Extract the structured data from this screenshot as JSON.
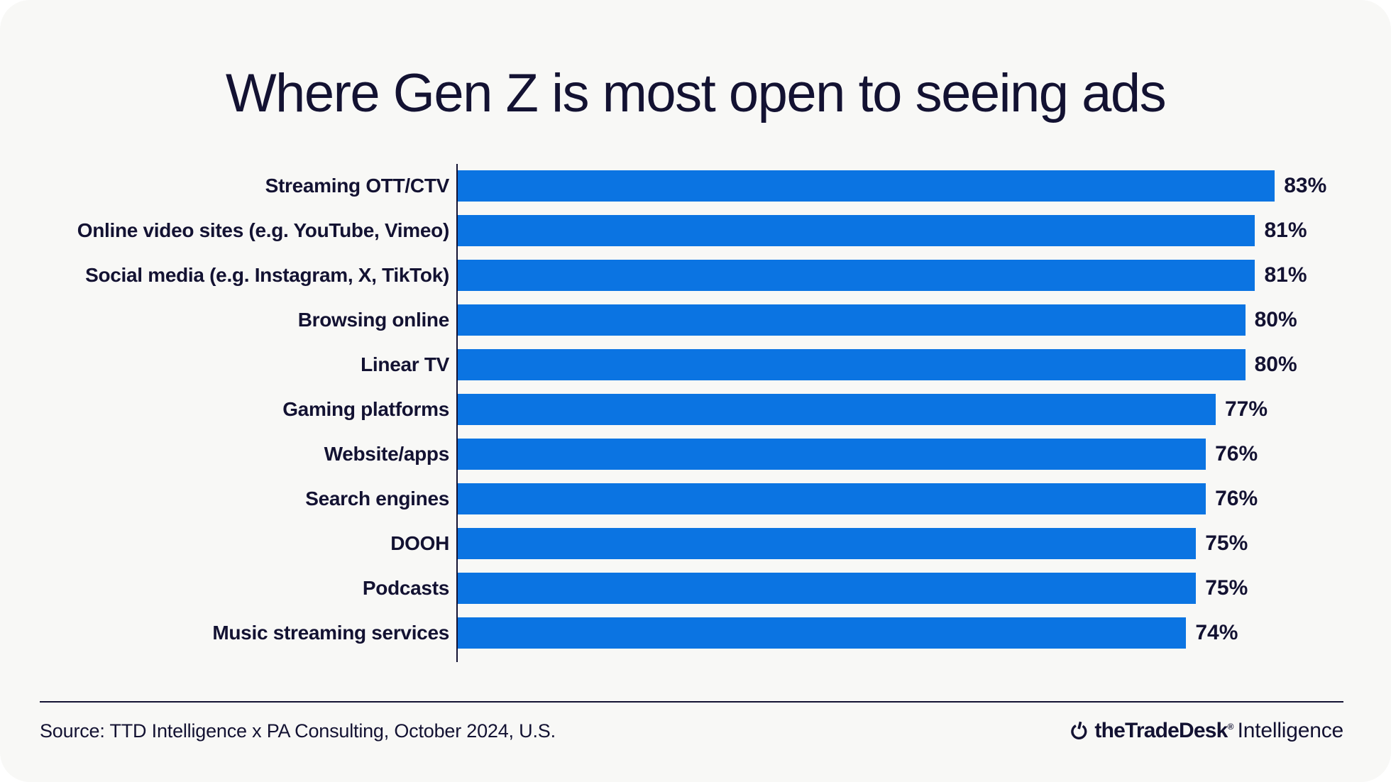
{
  "title": "Where Gen Z is most open to seeing ads",
  "footer": {
    "source": "Source: TTD Intelligence x PA Consulting, October 2024, U.S.",
    "logo": {
      "icon": "trade-desk-power-icon",
      "brand": "theTradeDesk",
      "registered_mark": "®",
      "suffix": "Intelligence"
    }
  },
  "colors": {
    "bar": "#0b74e2",
    "text": "#131232",
    "card_background": "#f8f8f6"
  },
  "chart_data": {
    "type": "bar",
    "orientation": "horizontal",
    "title": "Where Gen Z is most open to seeing ads",
    "categories": [
      "Streaming OTT/CTV",
      "Online video sites (e.g. YouTube, Vimeo)",
      "Social media (e.g. Instagram, X, TikTok)",
      "Browsing online",
      "Linear TV",
      "Gaming platforms",
      "Website/apps",
      "Search engines",
      "DOOH",
      "Podcasts",
      "Music streaming services"
    ],
    "values": [
      83,
      81,
      81,
      80,
      80,
      77,
      76,
      76,
      75,
      75,
      74
    ],
    "unit": "%",
    "xlim": [
      0,
      100
    ],
    "value_labels": "right-of-bar",
    "grid": false,
    "legend": false
  }
}
